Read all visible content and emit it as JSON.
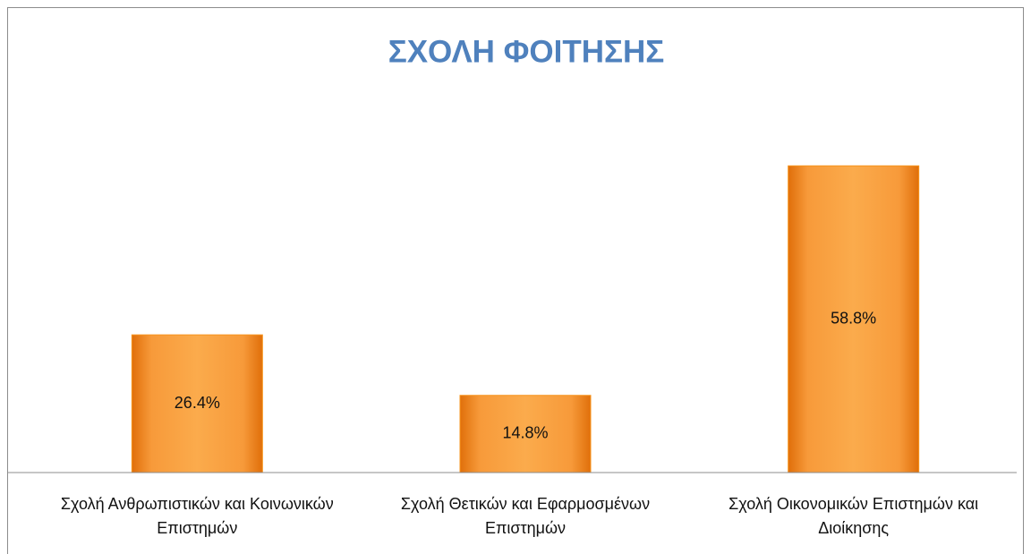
{
  "chart_data": {
    "type": "bar",
    "title": "ΣΧΟΛΗ ΦΟΙΤΗΣΗΣ",
    "categories": [
      "Σχολή Ανθρωπιστικών και Κοινωνικών Επιστημών",
      "Σχολή Θετικών και Εφαρμοσμένων Επιστημών",
      "Σχολή Οικονομικών Επιστημών και Διοίκησης"
    ],
    "values": [
      26.4,
      14.8,
      58.8
    ],
    "value_labels": [
      "26.4%",
      "14.8%",
      "58.8%"
    ],
    "color": "#f7941d",
    "ylim": [
      0,
      70
    ]
  }
}
